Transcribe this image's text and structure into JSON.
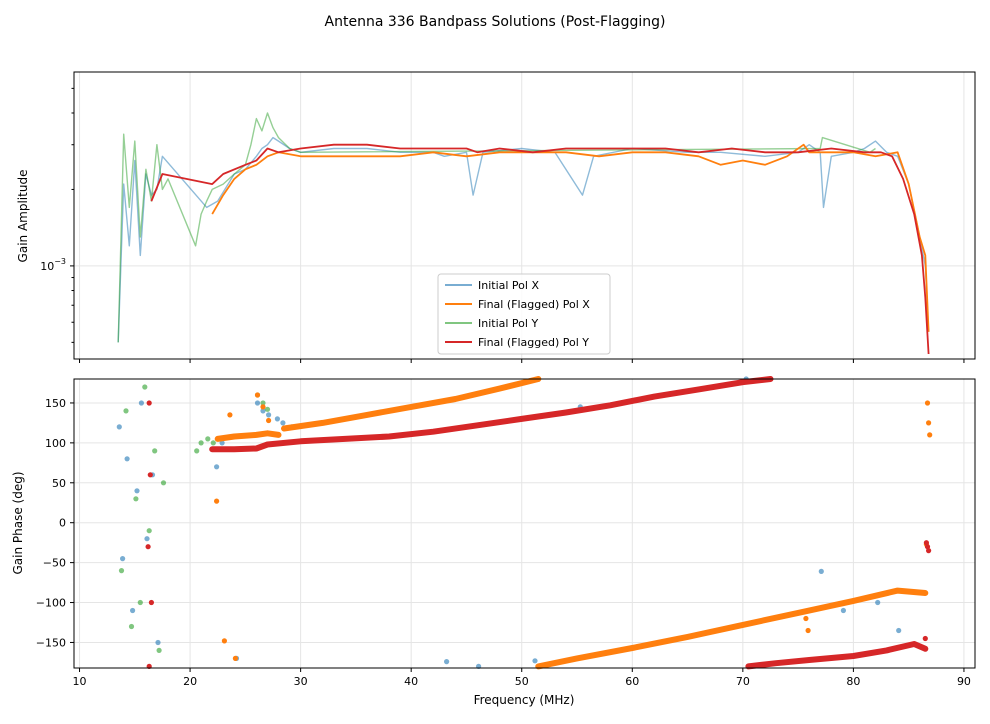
{
  "chart_data": [
    {
      "type": "line",
      "title": "Antenna 336 Bandpass Solutions (Post-Flagging)",
      "xlabel": "",
      "ylabel": "Gain Amplitude",
      "yscale": "log",
      "xlim": [
        9.5,
        91
      ],
      "ylim": [
        0.00043,
        0.0058
      ],
      "y_tick_labels": [
        "10^-3"
      ],
      "grid": true,
      "legend_position": "lower-center",
      "series": [
        {
          "name": "Initial Pol X",
          "color": "#1f77b4",
          "alpha": 0.5,
          "x": [
            13.5,
            14.0,
            14.5,
            15.0,
            15.5,
            16.0,
            16.5,
            17.0,
            17.5,
            21.5,
            22.5,
            24.0,
            25.0,
            26.0,
            26.5,
            27.0,
            27.5,
            28.0,
            29.0,
            30.0,
            33.0,
            36.0,
            39.0,
            42.0,
            43.0,
            45.0,
            45.6,
            46.5,
            50.0,
            53.0,
            55.5,
            56.5,
            60.0,
            65.0,
            68.0,
            72.0,
            75.0,
            76.0,
            77.0,
            77.3,
            78.0,
            80.0,
            81.0,
            82.0,
            83.0,
            84.0,
            85.0,
            86.0,
            86.5,
            86.8
          ],
          "y": [
            0.0005,
            0.0021,
            0.0012,
            0.0026,
            0.0011,
            0.0023,
            0.0019,
            0.002,
            0.0027,
            0.0017,
            0.0018,
            0.0023,
            0.0024,
            0.0027,
            0.0029,
            0.003,
            0.0032,
            0.0031,
            0.0029,
            0.0028,
            0.0029,
            0.0029,
            0.0028,
            0.0028,
            0.0027,
            0.0028,
            0.0019,
            0.0028,
            0.0029,
            0.0028,
            0.0019,
            0.0027,
            0.0029,
            0.0028,
            0.0028,
            0.0027,
            0.0028,
            0.003,
            0.0028,
            0.0017,
            0.0027,
            0.0028,
            0.0029,
            0.0031,
            0.0028,
            0.0027,
            0.0021,
            0.0013,
            0.001,
            0.00055
          ]
        },
        {
          "name": "Final (Flagged) Pol X",
          "color": "#ff7f0e",
          "alpha": 1.0,
          "x": [
            22.0,
            23.0,
            24.0,
            25.0,
            26.0,
            27.0,
            28.0,
            30.0,
            33.0,
            36.0,
            39.0,
            42.0,
            45.0,
            48.0,
            51.0,
            54.0,
            57.0,
            60.0,
            63.0,
            66.0,
            68.0,
            70.0,
            72.0,
            74.0,
            75.5,
            76.0,
            77.0,
            80.0,
            82.0,
            84.0,
            85.0,
            86.0,
            86.5,
            86.8
          ],
          "y": [
            0.0016,
            0.0019,
            0.0022,
            0.0024,
            0.0025,
            0.0027,
            0.0028,
            0.0027,
            0.0027,
            0.0027,
            0.0027,
            0.0028,
            0.0027,
            0.0028,
            0.0028,
            0.0028,
            0.0027,
            0.0028,
            0.0028,
            0.0027,
            0.0025,
            0.0026,
            0.0025,
            0.0027,
            0.003,
            0.0028,
            0.0028,
            0.0028,
            0.0027,
            0.0028,
            0.0021,
            0.0013,
            0.0011,
            0.00055
          ]
        },
        {
          "name": "Initial Pol Y",
          "color": "#2ca02c",
          "alpha": 0.5,
          "x": [
            13.5,
            14.0,
            14.5,
            15.0,
            15.5,
            16.0,
            16.5,
            17.0,
            17.5,
            18.0,
            20.5,
            21.0,
            21.5,
            22.0,
            23.0,
            24.0,
            25.0,
            25.5,
            26.0,
            26.5,
            27.0,
            27.5,
            28.0,
            29.0,
            30.0,
            77.0,
            77.2,
            81.5,
            82.0
          ],
          "y": [
            0.0005,
            0.0033,
            0.0017,
            0.0031,
            0.0013,
            0.0024,
            0.0018,
            0.003,
            0.002,
            0.0022,
            0.0012,
            0.0016,
            0.0018,
            0.002,
            0.0021,
            0.0023,
            0.0025,
            0.003,
            0.0038,
            0.0034,
            0.004,
            0.0035,
            0.0032,
            0.0029,
            0.0028,
            0.0029,
            0.0032,
            0.0028,
            0.0029
          ]
        },
        {
          "name": "Final (Flagged) Pol Y",
          "color": "#d62728",
          "alpha": 1.0,
          "x": [
            16.5,
            17.5,
            22.0,
            23.0,
            25.0,
            26.0,
            27.0,
            28.0,
            30.0,
            33.0,
            36.0,
            39.0,
            42.0,
            45.0,
            46.0,
            48.0,
            51.0,
            54.0,
            57.0,
            60.0,
            63.0,
            66.0,
            69.0,
            72.0,
            75.0,
            78.0,
            81.0,
            82.5,
            83.5,
            84.5,
            85.5,
            86.2,
            86.5,
            86.8
          ],
          "y": [
            0.0018,
            0.0023,
            0.0021,
            0.0023,
            0.0025,
            0.0026,
            0.0029,
            0.0028,
            0.0029,
            0.003,
            0.003,
            0.0029,
            0.0029,
            0.0029,
            0.0028,
            0.0029,
            0.0028,
            0.0029,
            0.0029,
            0.0029,
            0.0029,
            0.0028,
            0.0029,
            0.0028,
            0.0028,
            0.0029,
            0.0028,
            0.0028,
            0.0027,
            0.0022,
            0.0016,
            0.0011,
            0.00075,
            0.00045
          ]
        }
      ]
    },
    {
      "type": "scatter",
      "title": "",
      "xlabel": "Frequency (MHz)",
      "ylabel": "Gain Phase (deg)",
      "xlim": [
        9.5,
        91
      ],
      "ylim": [
        -182,
        180
      ],
      "x_ticks": [
        10,
        20,
        30,
        40,
        50,
        60,
        70,
        80,
        90
      ],
      "y_ticks": [
        -150,
        -100,
        -50,
        0,
        50,
        100,
        150
      ],
      "grid": true,
      "series": [
        {
          "name": "Initial Pol X",
          "color": "#1f77b4",
          "alpha": 0.6,
          "x": [
            13.6,
            13.9,
            14.3,
            14.8,
            15.2,
            15.6,
            16.1,
            16.6,
            17.1,
            22.4,
            22.9,
            24.2,
            26.1,
            26.6,
            27.1,
            27.9,
            28.4,
            29.2,
            43.2,
            46.1,
            51.2,
            55.3,
            70.3,
            77.1,
            79.1,
            82.2,
            84.1
          ],
          "y": [
            120,
            -45,
            80,
            -110,
            40,
            150,
            -20,
            60,
            -150,
            70,
            100,
            -170,
            150,
            140,
            135,
            130,
            125,
            120,
            -174,
            -180,
            -173,
            145,
            180,
            -61,
            -110,
            -100,
            -135
          ]
        },
        {
          "name": "Final (Flagged) Pol X",
          "color": "#ff7f0e",
          "alpha": 1.0,
          "segments": [
            {
              "x": [
                22.5,
                24.0,
                26.0,
                27.0,
                28.0
              ],
              "y": [
                105,
                108,
                110,
                112,
                110
              ]
            },
            {
              "x": [
                28.5,
                32.0,
                36.0,
                40.0,
                44.0,
                48.0,
                51.5
              ],
              "y": [
                118,
                125,
                135,
                145,
                155,
                168,
                180
              ]
            },
            {
              "x": [
                51.5,
                55.0,
                60.0,
                65.0,
                70.0,
                75.0,
                80.0,
                84.0,
                86.5
              ],
              "y": [
                -180,
                -170,
                -157,
                -143,
                -128,
                -113,
                -98,
                -85,
                -88
              ]
            }
          ],
          "points_x": [
            22.4,
            23.1,
            23.6,
            24.1,
            26.1,
            26.6,
            27.1,
            86.7,
            86.8,
            86.9,
            86.6,
            75.7,
            75.9
          ],
          "points_y": [
            27,
            -148,
            135,
            -170,
            160,
            145,
            128,
            150,
            125,
            110,
            -27,
            -120,
            -135
          ]
        },
        {
          "name": "Initial Pol Y",
          "color": "#2ca02c",
          "alpha": 0.6,
          "x": [
            13.8,
            14.2,
            14.7,
            15.1,
            15.5,
            15.9,
            16.3,
            16.8,
            17.2,
            17.6,
            20.6,
            21.0,
            21.6,
            22.1,
            26.1,
            26.6,
            27.0
          ],
          "y": [
            -60,
            140,
            -130,
            30,
            -100,
            170,
            -10,
            90,
            -160,
            50,
            90,
            100,
            105,
            100,
            160,
            150,
            142
          ]
        },
        {
          "name": "Final (Flagged) Pol Y",
          "color": "#d62728",
          "alpha": 1.0,
          "segments": [
            {
              "x": [
                22.0,
                24.0,
                26.0,
                27.0,
                30.0,
                34.0,
                38.0,
                42.0,
                46.0,
                50.0,
                54.0,
                58.0,
                62.0,
                66.0,
                70.0,
                72.5
              ],
              "y": [
                92,
                92,
                93,
                98,
                102,
                105,
                108,
                114,
                122,
                130,
                138,
                147,
                158,
                167,
                176,
                180
              ]
            },
            {
              "x": [
                70.5,
                73.0,
                76.0,
                80.0,
                83.0,
                85.5,
                86.5
              ],
              "y": [
                -180,
                -176,
                -172,
                -167,
                -160,
                -152,
                -158
              ]
            }
          ],
          "points_x": [
            16.3,
            16.4,
            16.2,
            16.5,
            16.3,
            86.6,
            86.7,
            86.8,
            86.5
          ],
          "points_y": [
            150,
            60,
            -30,
            -100,
            -180,
            -25,
            -30,
            -35,
            -145
          ]
        }
      ]
    }
  ]
}
